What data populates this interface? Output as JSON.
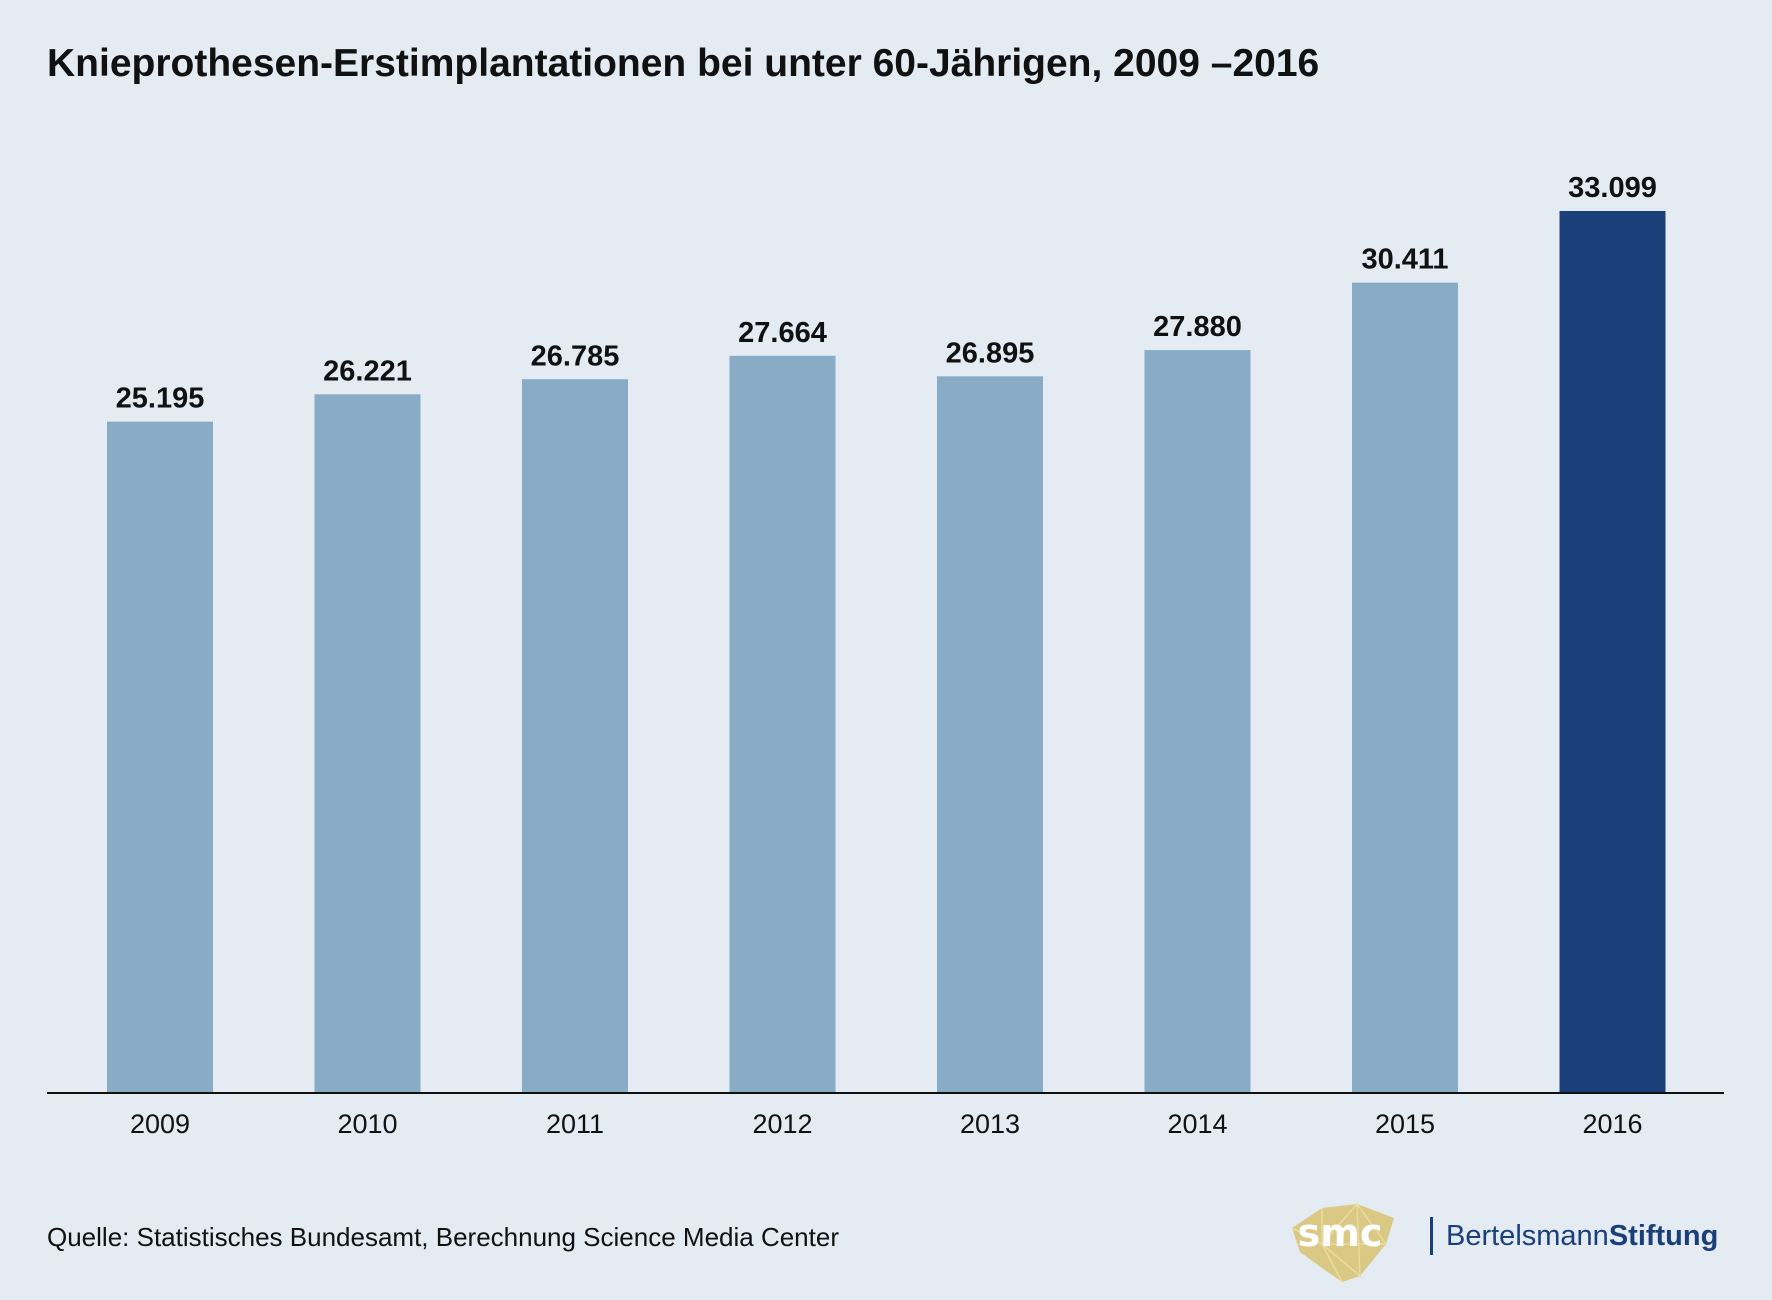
{
  "chart_data": {
    "type": "bar",
    "title": "Knieprothesen-Erstimplantationen bei unter 60-Jährigen, 2009 –2016",
    "categories": [
      "2009",
      "2010",
      "2011",
      "2012",
      "2013",
      "2014",
      "2015",
      "2016"
    ],
    "values": [
      25195,
      26221,
      26785,
      27664,
      26895,
      27880,
      30411,
      33099
    ],
    "value_labels": [
      "25.195",
      "26.221",
      "26.785",
      "27.664",
      "26.895",
      "27.880",
      "30.411",
      "33.099"
    ],
    "highlight_index": 7,
    "xlabel": "",
    "ylabel": "",
    "ylim": [
      0,
      33099
    ],
    "grid": false,
    "colors": {
      "default": "#88abc6",
      "highlight": "#1b3f78",
      "axis": "#111111"
    }
  },
  "footer": {
    "source": "Quelle: Statistisches Bundesamt, Berechnung Science Media Center",
    "logo_smc": "smc",
    "logo_bertelsmann_regular": "Bertelsmann",
    "logo_bertelsmann_bold": "Stiftung"
  }
}
